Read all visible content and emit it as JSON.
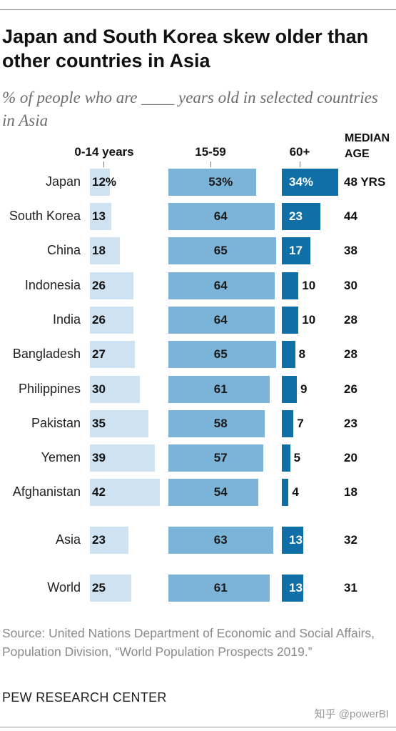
{
  "title": "Japan and South Korea skew older than other countries in Asia",
  "subtitle": "% of people who are ____ years old in selected countries in Asia",
  "median_header": [
    "MEDIAN",
    "AGE"
  ],
  "source": "Source: United Nations Department of Economic and Social Affairs, Population Division, “World Population Prospects 2019.”",
  "org": "PEW RESEARCH CENTER",
  "watermark": "知乎 @powerBI",
  "colors": {
    "age_0_14": "#cfe2f1",
    "age_15_59": "#7cb4d9",
    "age_60_plus": "#0f6fa6"
  },
  "chart_data": {
    "type": "bar",
    "title": "Japan and South Korea skew older than other countries in Asia",
    "subtitle": "% of people who are ____ years old in selected countries in Asia",
    "categories": [
      "Japan",
      "South Korea",
      "China",
      "Indonesia",
      "India",
      "Bangladesh",
      "Philippines",
      "Pakistan",
      "Yemen",
      "Afghanistan",
      "Asia",
      "World"
    ],
    "series": [
      {
        "name": "0-14 years",
        "values": [
          12,
          13,
          18,
          26,
          26,
          27,
          30,
          35,
          39,
          42,
          23,
          25
        ],
        "labels": [
          "12%",
          "13",
          "18",
          "26",
          "26",
          "27",
          "30",
          "35",
          "39",
          "42",
          "23",
          "25"
        ]
      },
      {
        "name": "15-59",
        "values": [
          53,
          64,
          65,
          64,
          64,
          65,
          61,
          58,
          57,
          54,
          63,
          61
        ],
        "labels": [
          "53%",
          "64",
          "65",
          "64",
          "64",
          "65",
          "61",
          "58",
          "57",
          "54",
          "63",
          "61"
        ]
      },
      {
        "name": "60+",
        "values": [
          34,
          23,
          17,
          10,
          10,
          8,
          9,
          7,
          5,
          4,
          13,
          13
        ],
        "labels": [
          "34%",
          "23",
          "17",
          "10",
          "10",
          "8",
          "9",
          "7",
          "5",
          "4",
          "13",
          "13"
        ]
      }
    ],
    "median_age": [
      "48 YRS",
      "44",
      "38",
      "30",
      "28",
      "28",
      "26",
      "23",
      "20",
      "18",
      "32",
      "31"
    ]
  }
}
